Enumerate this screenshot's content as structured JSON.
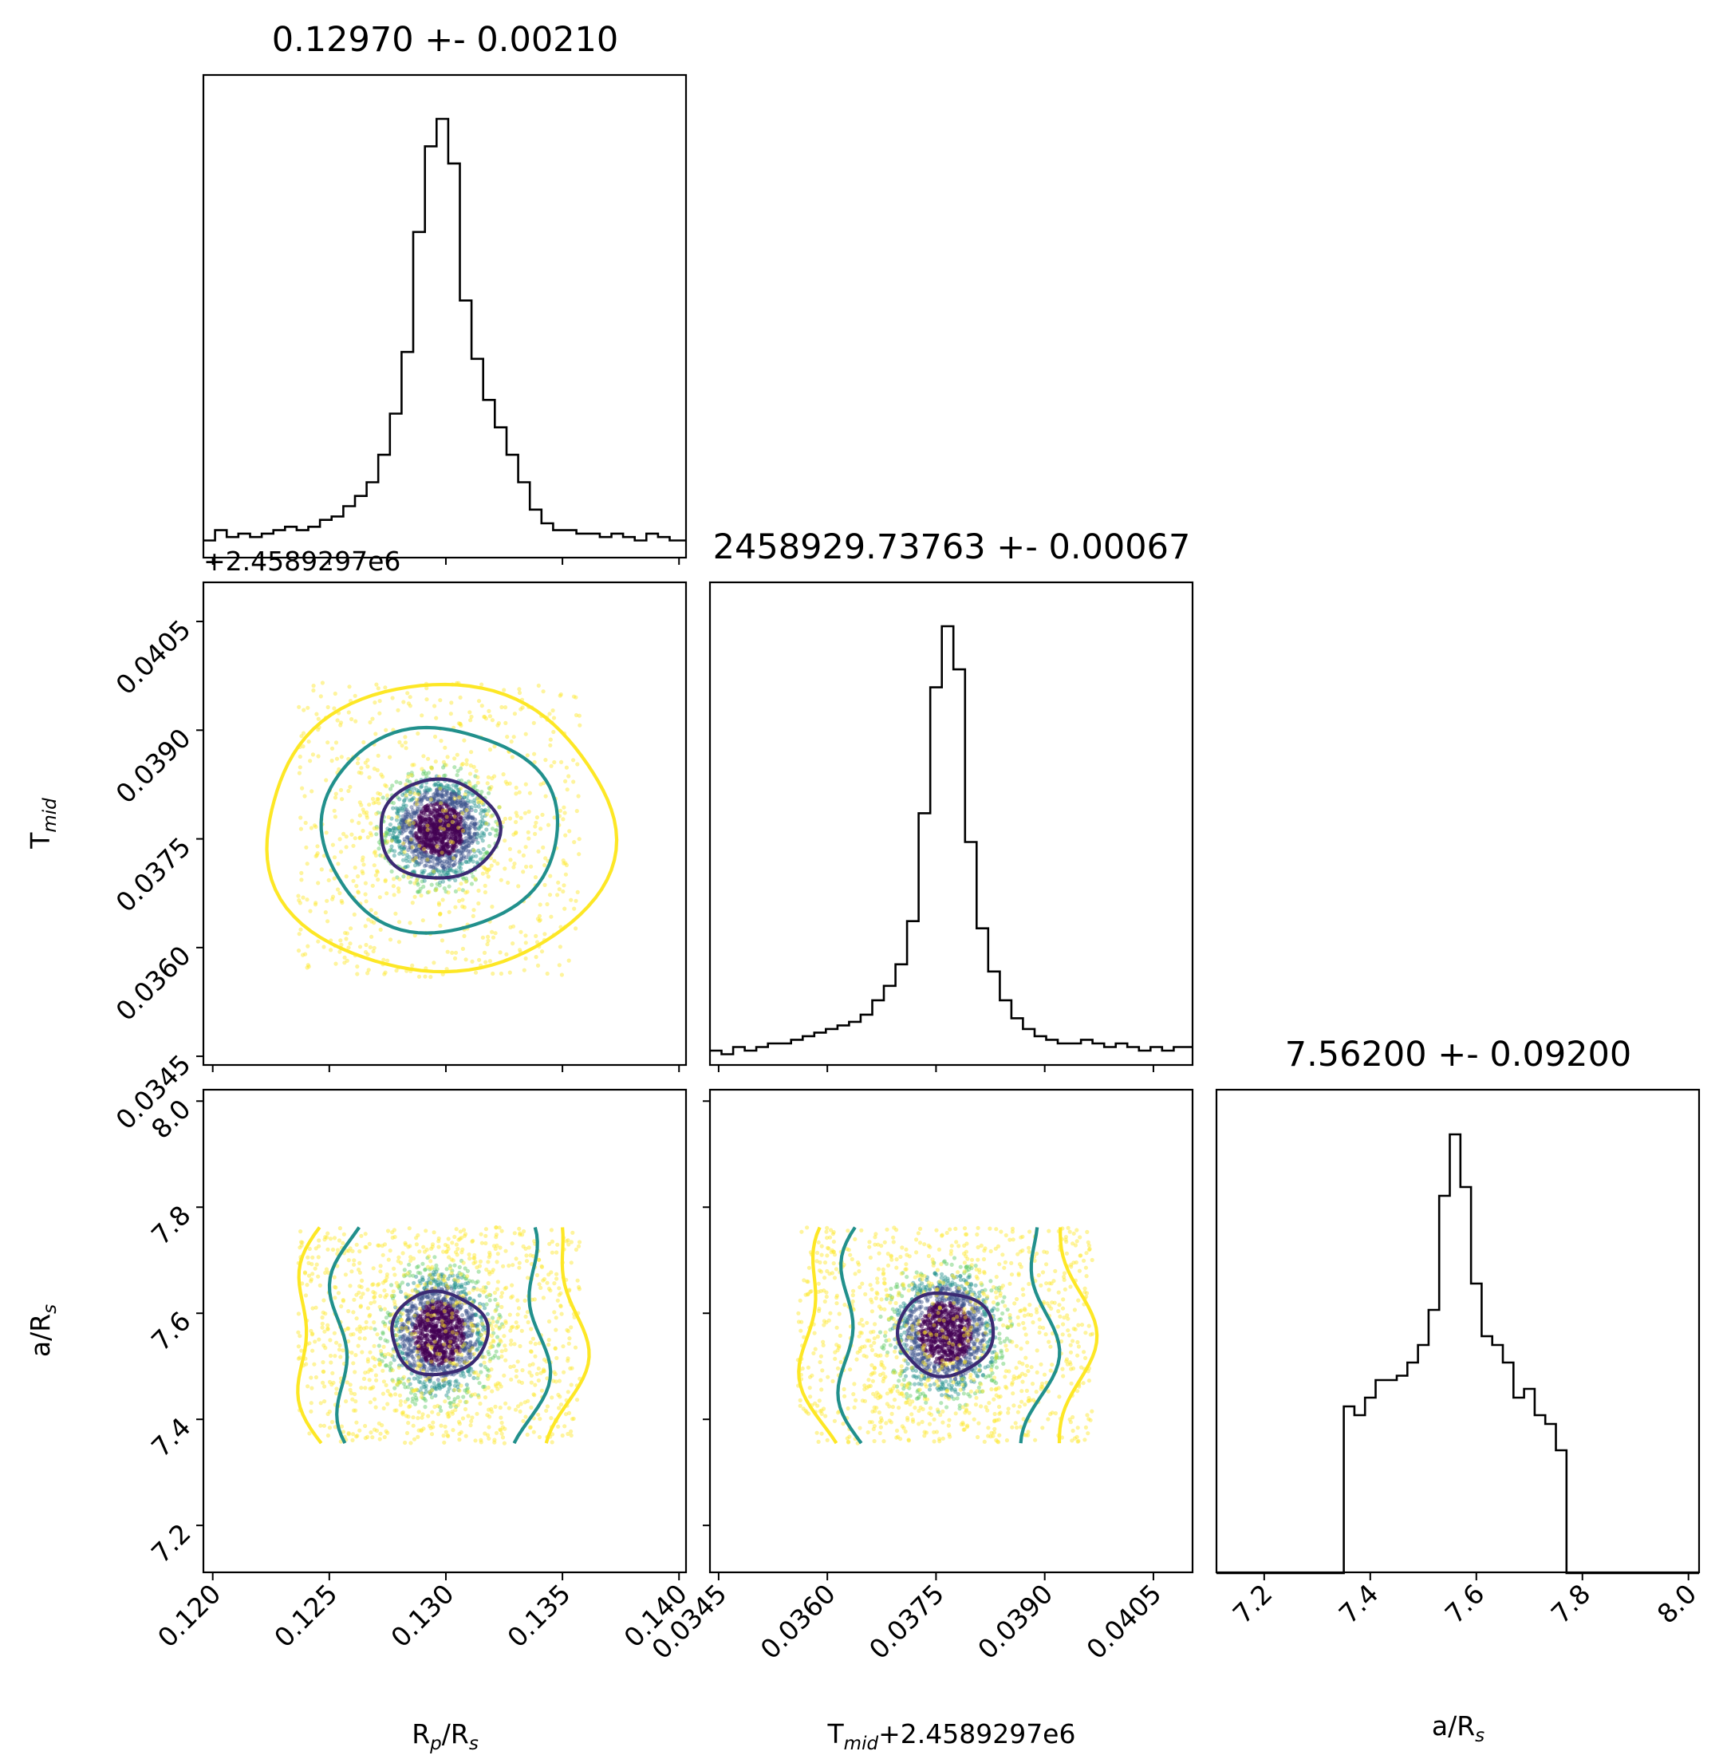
{
  "chart_data": {
    "type": "corner",
    "parameters": [
      {
        "key": "rprs",
        "label": "R",
        "sub_a": "p",
        "label2": "/R",
        "sub_b": "s"
      },
      {
        "key": "tmid",
        "label": "T",
        "sub_a": "mid"
      },
      {
        "key": "ars",
        "label": "a/R",
        "sub_a": "s"
      }
    ],
    "x_axis_labels": {
      "rprs": {
        "main": "R",
        "sub1": "p",
        "mid": "/R",
        "sub2": "s"
      },
      "tmid": {
        "main": "T",
        "sub1": "mid",
        "mid": "+2.4589297e6",
        "sub2": ""
      },
      "ars": {
        "main": "a/R",
        "sub1": "s",
        "mid": "",
        "sub2": ""
      }
    },
    "y_axis_labels": {
      "tmid": {
        "main": "T",
        "sub1": "mid"
      },
      "ars": {
        "main": "a/R",
        "sub1": "s"
      }
    },
    "offset_text": "+2.4589297e6",
    "titles": {
      "rprs": "0.12970 +- 0.00210",
      "tmid": "2458929.73763 +- 0.00067",
      "ars": "7.56200 +- 0.09200"
    },
    "ranges": {
      "rprs": [
        0.1196,
        0.1403
      ],
      "tmid_offset": [
        0.03438,
        0.04104
      ],
      "ars": [
        7.11,
        8.02
      ]
    },
    "ticks": {
      "rprs": [
        "0.120",
        "0.125",
        "0.130",
        "0.135",
        "0.140"
      ],
      "tmid": [
        "0.0345",
        "0.0360",
        "0.0375",
        "0.0390",
        "0.0405"
      ],
      "ars_x": [
        "7.2",
        "7.4",
        "7.6",
        "7.8",
        "8.0"
      ],
      "ars_y": [
        "7.2",
        "7.4",
        "7.6",
        "7.8",
        "8.0"
      ]
    },
    "colors": {
      "level_1sigma": "#3b2a73",
      "level_2sigma": "#21908c",
      "level_3sigma": "#fde725",
      "core": "#440154",
      "histogram": "#000000"
    },
    "histograms": {
      "rprs": {
        "bin_edges": [
          0.1196,
          0.1201,
          0.1206,
          0.1211,
          0.1216,
          0.1221,
          0.1226,
          0.1231,
          0.1236,
          0.1241,
          0.1246,
          0.1251,
          0.1256,
          0.1261,
          0.1266,
          0.1271,
          0.1276,
          0.1281,
          0.1286,
          0.1291,
          0.1296,
          0.1301,
          0.1306,
          0.1311,
          0.1316,
          0.1321,
          0.1326,
          0.1331,
          0.1336,
          0.1341,
          0.1346,
          0.1351,
          0.1356,
          0.1361,
          0.1366,
          0.1371,
          0.1376,
          0.1381,
          0.1386,
          0.1391,
          0.1396,
          0.1403
        ],
        "counts": [
          5,
          8,
          6,
          7,
          6,
          7,
          8,
          9,
          8,
          9,
          11,
          12,
          15,
          18,
          22,
          30,
          42,
          60,
          95,
          120,
          128,
          115,
          75,
          58,
          46,
          38,
          30,
          22,
          14,
          10,
          8,
          8,
          7,
          7,
          6,
          7,
          6,
          5,
          7,
          6,
          5
        ]
      },
      "tmid": {
        "bin_edges": [
          0.03438,
          0.03454,
          0.0347,
          0.03486,
          0.03502,
          0.03518,
          0.03534,
          0.0355,
          0.03566,
          0.03582,
          0.03598,
          0.03614,
          0.0363,
          0.03646,
          0.03662,
          0.03678,
          0.03694,
          0.0371,
          0.03726,
          0.03742,
          0.03758,
          0.03774,
          0.0379,
          0.03806,
          0.03822,
          0.03838,
          0.03854,
          0.0387,
          0.03886,
          0.03902,
          0.03918,
          0.03934,
          0.0395,
          0.03966,
          0.03982,
          0.03998,
          0.04014,
          0.0403,
          0.04046,
          0.04062,
          0.04078,
          0.04104
        ],
        "counts": [
          4,
          3,
          5,
          4,
          5,
          6,
          6,
          7,
          8,
          9,
          10,
          11,
          12,
          14,
          18,
          22,
          28,
          40,
          70,
          105,
          122,
          110,
          62,
          38,
          26,
          18,
          13,
          10,
          8,
          7,
          6,
          6,
          7,
          6,
          5,
          6,
          5,
          4,
          5,
          4,
          5
        ]
      },
      "ars": {
        "bin_edges": [
          7.11,
          7.35,
          7.37,
          7.39,
          7.41,
          7.43,
          7.45,
          7.47,
          7.49,
          7.51,
          7.53,
          7.55,
          7.57,
          7.59,
          7.61,
          7.63,
          7.65,
          7.67,
          7.69,
          7.71,
          7.73,
          7.75,
          7.77,
          8.02
        ],
        "counts": [
          0,
          38,
          36,
          40,
          44,
          44,
          45,
          48,
          52,
          60,
          86,
          100,
          88,
          66,
          54,
          52,
          48,
          40,
          42,
          36,
          34,
          28,
          0
        ]
      }
    },
    "contours": {
      "levels": [
        "1sigma",
        "2sigma",
        "3sigma"
      ],
      "center": {
        "rprs": 0.1297,
        "tmid_offset": 0.03763,
        "ars": 7.562
      }
    },
    "samples_note_colors": [
      "#440154",
      "#3b528b",
      "#21908c",
      "#5ec962",
      "#fde725"
    ]
  }
}
